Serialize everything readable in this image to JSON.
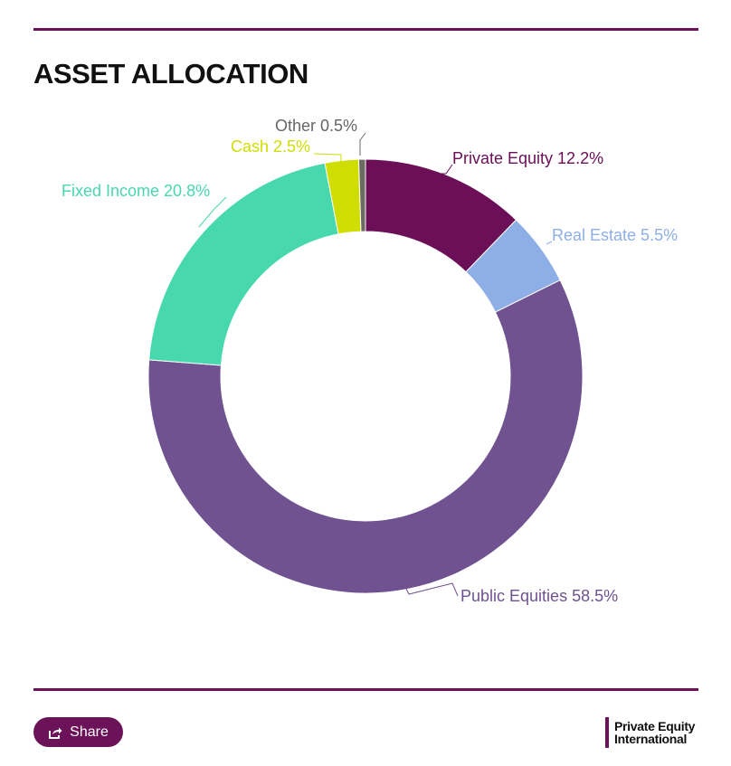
{
  "header": {
    "title": "ASSET ALLOCATION"
  },
  "chart_data": {
    "type": "pie",
    "donut": true,
    "categories": [
      "Private Equity",
      "Real Estate",
      "Public Equities",
      "Fixed Income",
      "Cash",
      "Other"
    ],
    "values": [
      12.2,
      5.5,
      58.5,
      20.8,
      2.5,
      0.5
    ],
    "labels": [
      "Private Equity 12.2%",
      "Real Estate 5.5%",
      "Public Equities 58.5%",
      "Fixed Income 20.8%",
      "Cash 2.5%",
      "Other 0.5%"
    ],
    "colors": [
      "#6b0f57",
      "#8eafe5",
      "#6f528f",
      "#48d8ae",
      "#cfdd00",
      "#6b6b5f"
    ],
    "label_colors": [
      "#6b0f57",
      "#8eafe5",
      "#6f528f",
      "#48d8ae",
      "#cfdd00",
      "#666666"
    ],
    "legend": "none"
  },
  "footer": {
    "share_label": "Share",
    "share_icon": "share-icon",
    "logo_line1": "Private Equity",
    "logo_line2": "International"
  }
}
